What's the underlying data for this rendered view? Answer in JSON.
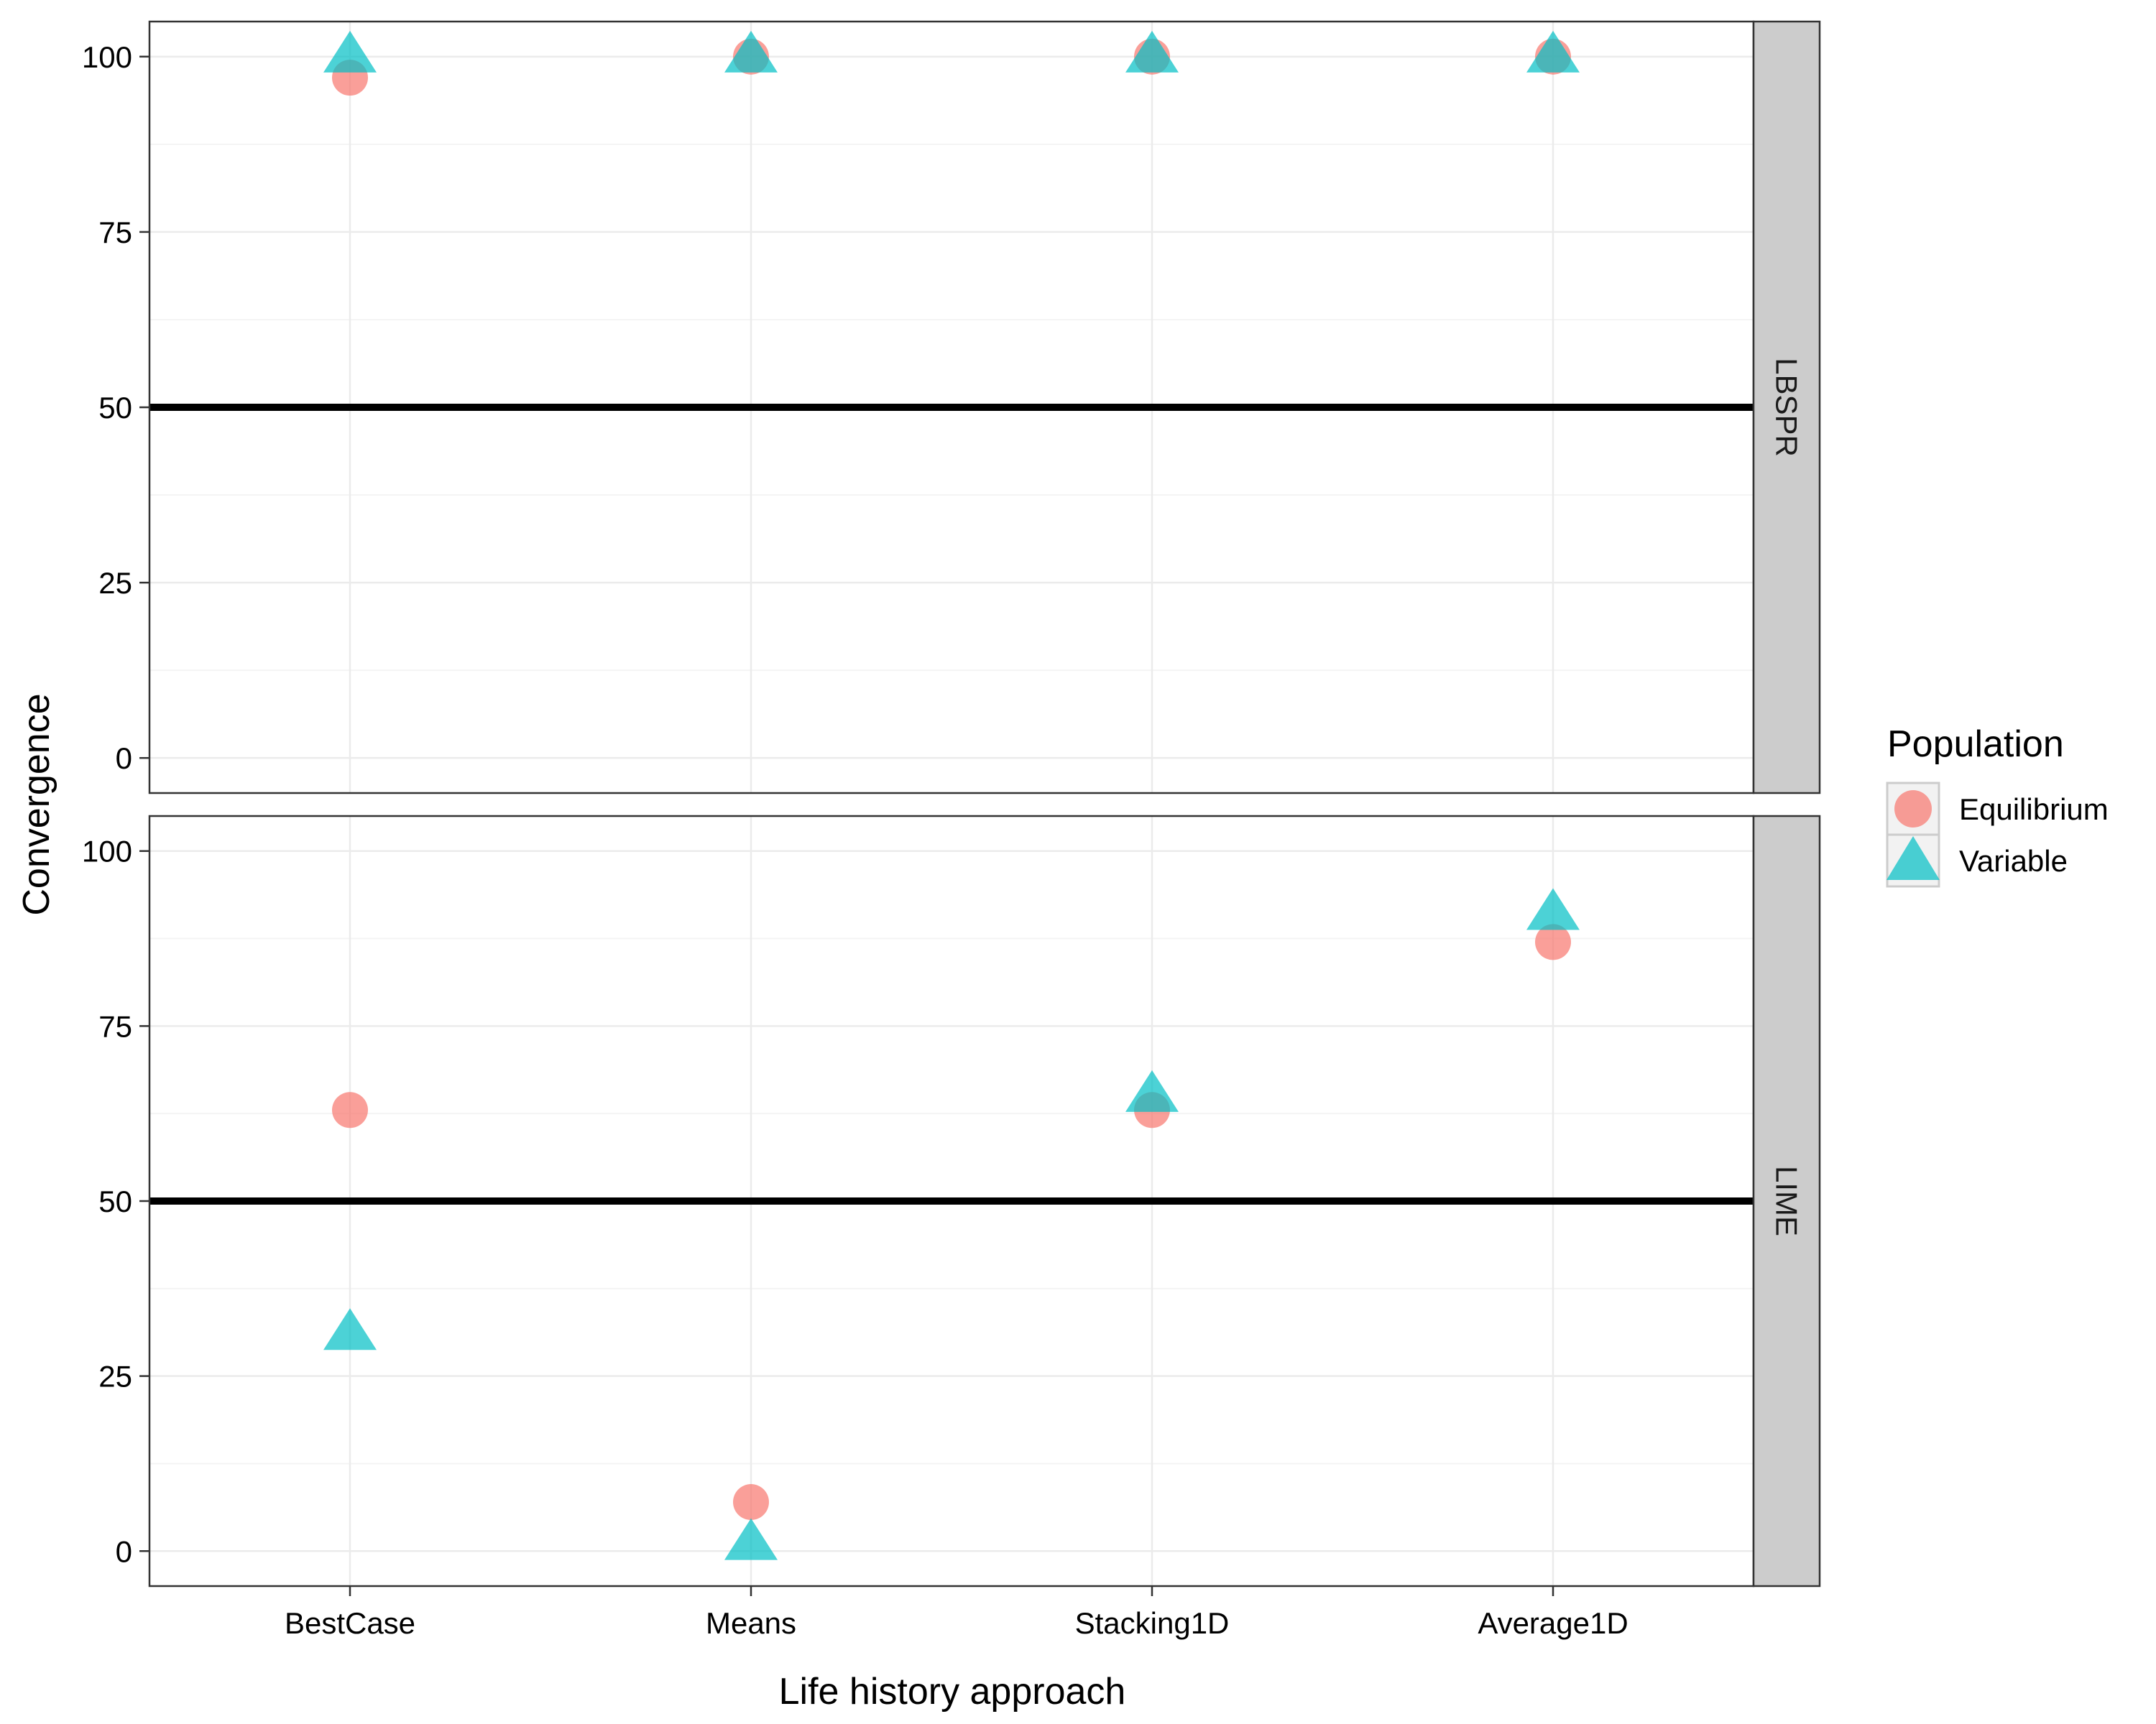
{
  "chart_data": {
    "type": "scatter",
    "xlabel": "Life history approach",
    "ylabel": "Convergence",
    "categories": [
      "BestCase",
      "Means",
      "Stacking1D",
      "Average1D"
    ],
    "ylim": [
      -5,
      105
    ],
    "yticks": [
      0,
      25,
      50,
      75,
      100
    ],
    "reference_line": 50,
    "grid": true,
    "colors": {
      "Equilibrium": "#F8766D",
      "Variable": "#00BFC4"
    },
    "legend": {
      "title": "Population",
      "position": "right",
      "entries": [
        {
          "label": "Equilibrium",
          "shape": "circle"
        },
        {
          "label": "Variable",
          "shape": "triangle"
        }
      ]
    },
    "panels": [
      {
        "strip": "LBSPR",
        "series": [
          {
            "name": "Equilibrium",
            "values": [
              97,
              100,
              100,
              100
            ]
          },
          {
            "name": "Variable",
            "values": [
              100,
              100,
              100,
              100
            ]
          }
        ]
      },
      {
        "strip": "LIME",
        "series": [
          {
            "name": "Equilibrium",
            "values": [
              63,
              7,
              63,
              87
            ]
          },
          {
            "name": "Variable",
            "values": [
              31,
              1,
              65,
              91
            ]
          }
        ]
      }
    ]
  }
}
